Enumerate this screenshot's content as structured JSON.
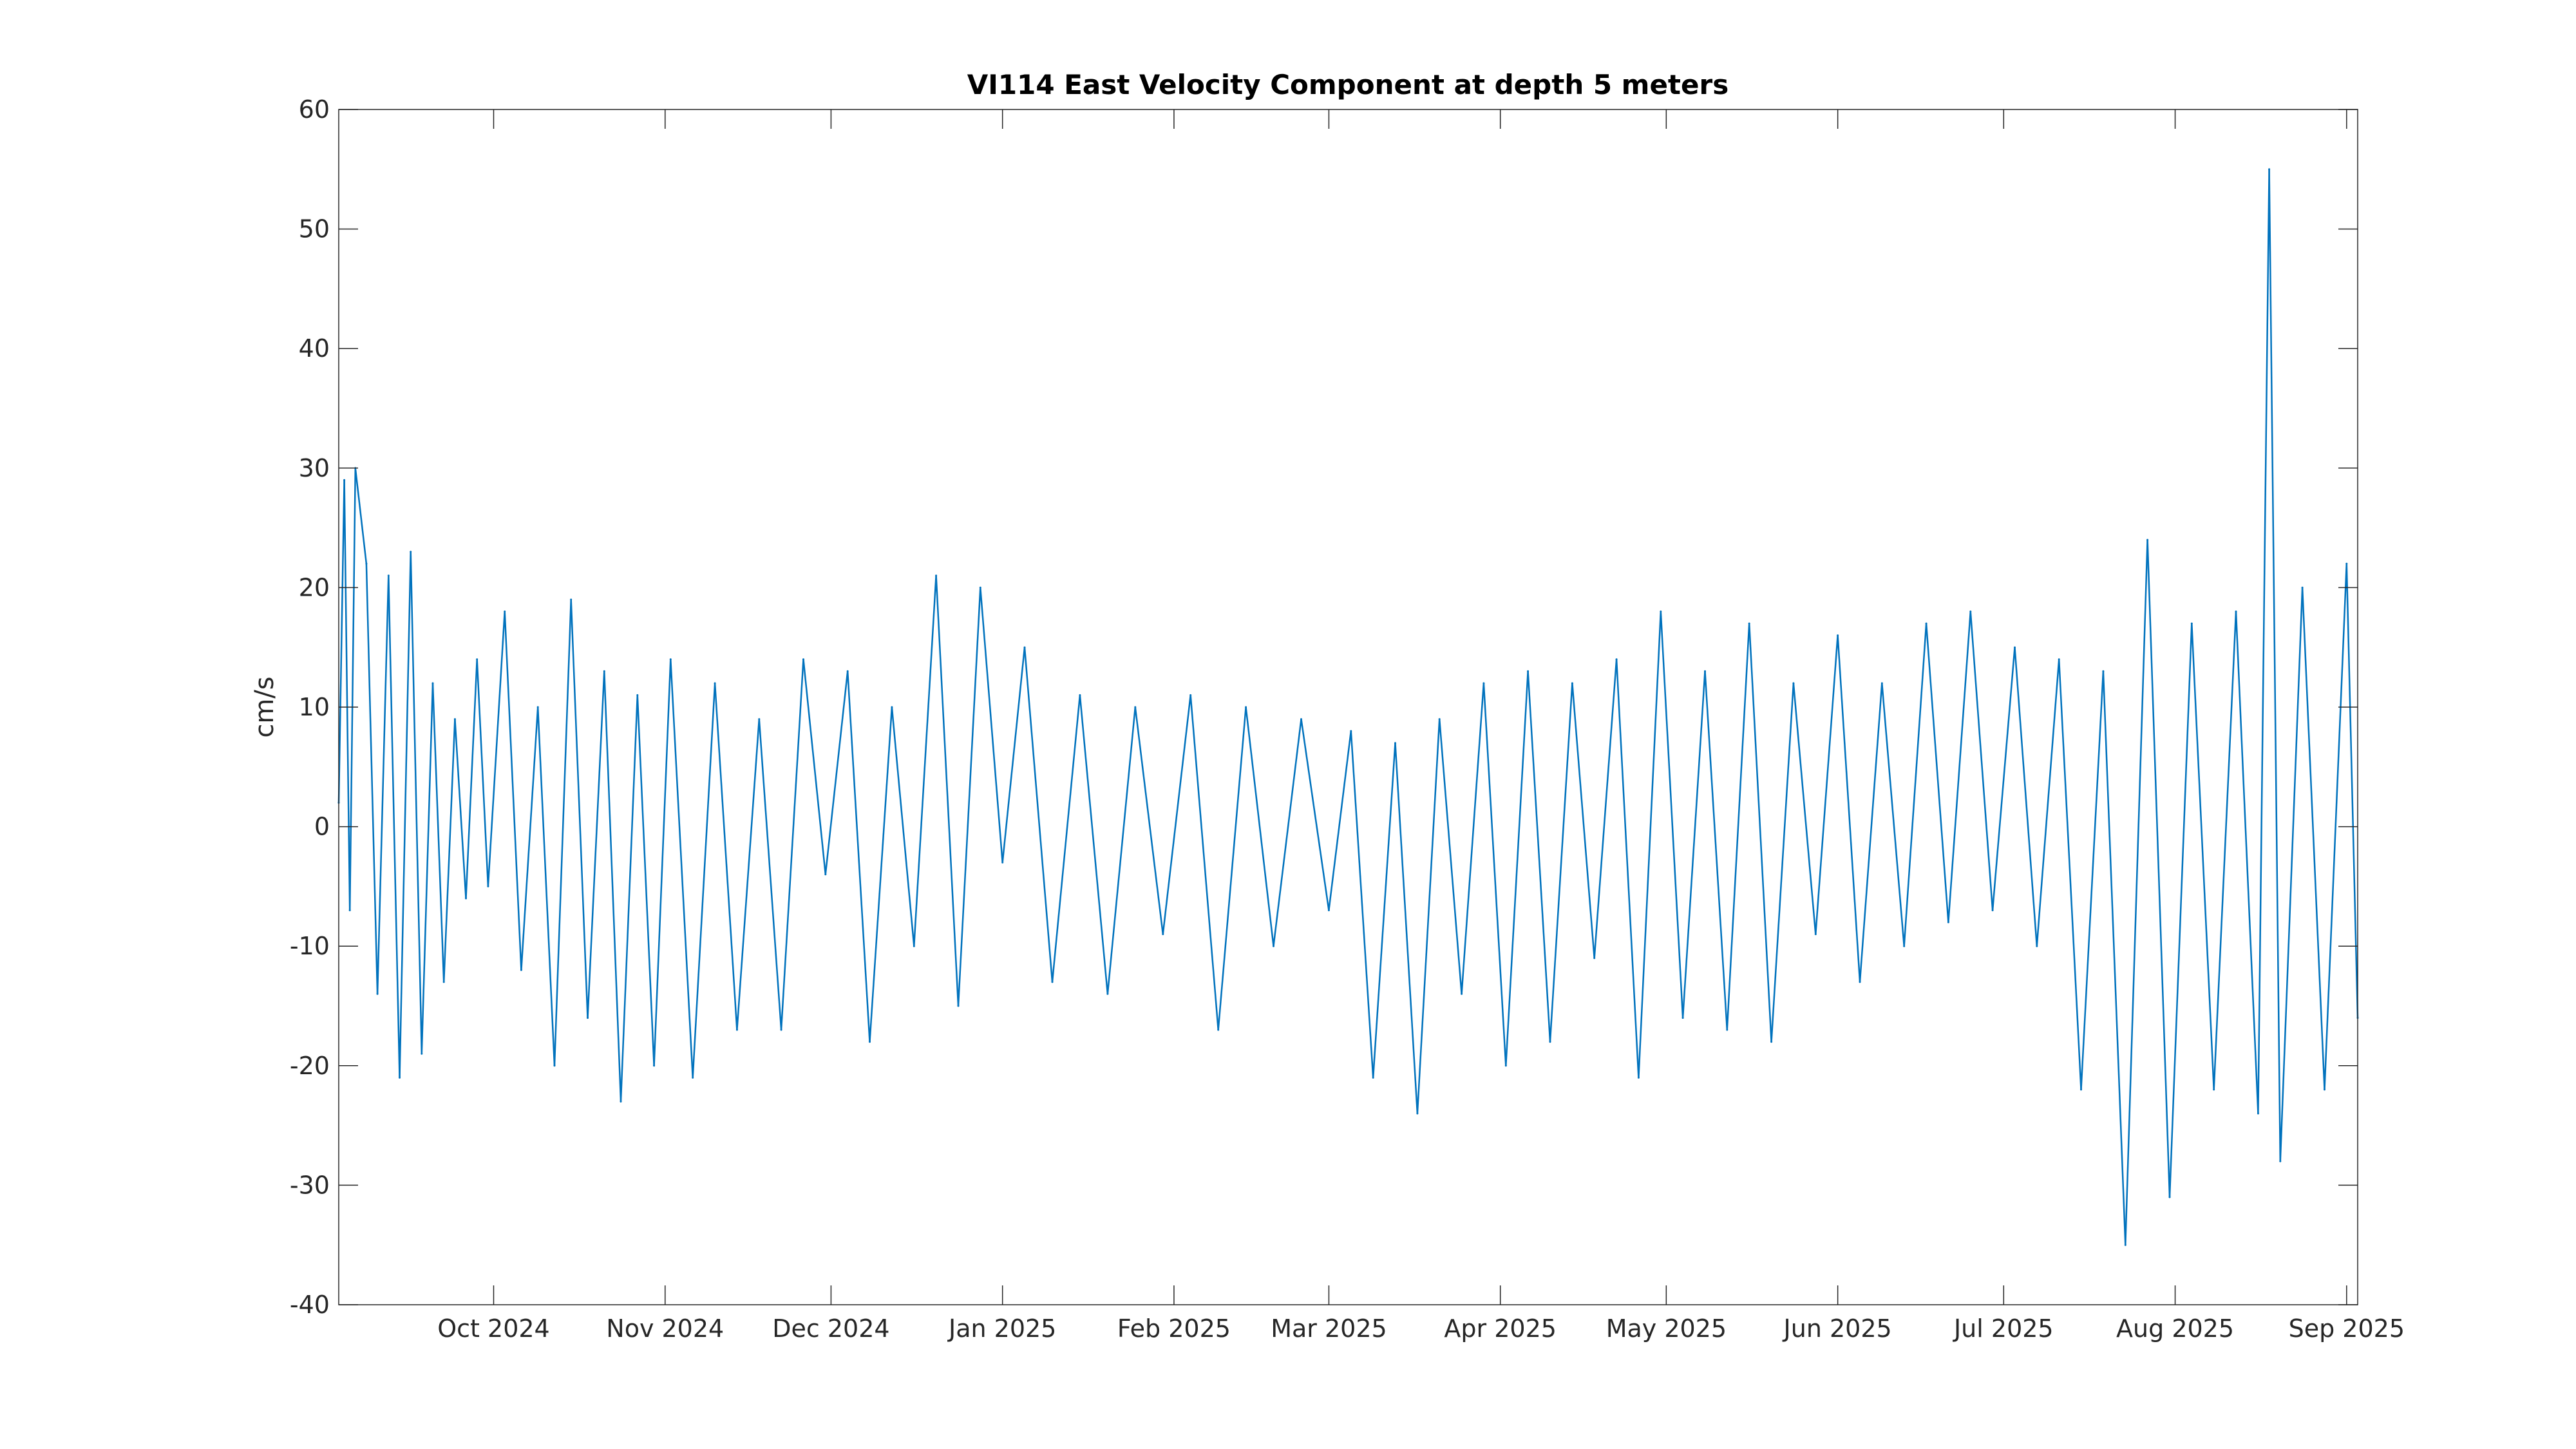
{
  "chart_data": {
    "type": "line",
    "title": "VI114 East Velocity Component at depth 5 meters",
    "xlabel": "",
    "ylabel": "cm/s",
    "ylim": [
      -40,
      60
    ],
    "yticks": [
      60,
      50,
      40,
      30,
      20,
      10,
      0,
      -10,
      -20,
      -30,
      -40
    ],
    "xlim": [
      "2024-09-03",
      "2025-09-03"
    ],
    "xticks": [
      {
        "date": "2024-10-01",
        "label": "Oct 2024"
      },
      {
        "date": "2024-11-01",
        "label": "Nov 2024"
      },
      {
        "date": "2024-12-01",
        "label": "Dec 2024"
      },
      {
        "date": "2025-01-01",
        "label": "Jan 2025"
      },
      {
        "date": "2025-02-01",
        "label": "Feb 2025"
      },
      {
        "date": "2025-03-01",
        "label": "Mar 2025"
      },
      {
        "date": "2025-04-01",
        "label": "Apr 2025"
      },
      {
        "date": "2025-05-01",
        "label": "May 2025"
      },
      {
        "date": "2025-06-01",
        "label": "Jun 2025"
      },
      {
        "date": "2025-07-01",
        "label": "Jul 2025"
      },
      {
        "date": "2025-08-01",
        "label": "Aug 2025"
      },
      {
        "date": "2025-09-01",
        "label": "Sep 2025"
      }
    ],
    "grid": false,
    "series_color": "#0072BD",
    "series": [
      {
        "x": [
          "2024-09-03",
          "2024-09-04",
          "2024-09-05",
          "2024-09-06",
          "2024-09-08",
          "2024-09-10",
          "2024-09-12",
          "2024-09-14",
          "2024-09-16",
          "2024-09-18",
          "2024-09-20",
          "2024-09-22",
          "2024-09-24",
          "2024-09-26",
          "2024-09-28",
          "2024-09-30",
          "2024-10-03",
          "2024-10-06",
          "2024-10-09",
          "2024-10-12",
          "2024-10-15",
          "2024-10-18",
          "2024-10-21",
          "2024-10-24",
          "2024-10-27",
          "2024-10-30",
          "2024-11-02",
          "2024-11-06",
          "2024-11-10",
          "2024-11-14",
          "2024-11-18",
          "2024-11-22",
          "2024-11-26",
          "2024-11-30",
          "2024-12-04",
          "2024-12-08",
          "2024-12-12",
          "2024-12-16",
          "2024-12-20",
          "2024-12-24",
          "2024-12-28",
          "2025-01-01",
          "2025-01-05",
          "2025-01-10",
          "2025-01-15",
          "2025-01-20",
          "2025-01-25",
          "2025-01-30",
          "2025-02-04",
          "2025-02-09",
          "2025-02-14",
          "2025-02-19",
          "2025-02-24",
          "2025-03-01",
          "2025-03-05",
          "2025-03-09",
          "2025-03-13",
          "2025-03-17",
          "2025-03-21",
          "2025-03-25",
          "2025-03-29",
          "2025-04-02",
          "2025-04-06",
          "2025-04-10",
          "2025-04-14",
          "2025-04-18",
          "2025-04-22",
          "2025-04-26",
          "2025-04-30",
          "2025-05-04",
          "2025-05-08",
          "2025-05-12",
          "2025-05-16",
          "2025-05-20",
          "2025-05-24",
          "2025-05-28",
          "2025-06-01",
          "2025-06-05",
          "2025-06-09",
          "2025-06-13",
          "2025-06-17",
          "2025-06-21",
          "2025-06-25",
          "2025-06-29",
          "2025-07-03",
          "2025-07-07",
          "2025-07-11",
          "2025-07-15",
          "2025-07-19",
          "2025-07-23",
          "2025-07-27",
          "2025-07-31",
          "2025-08-04",
          "2025-08-08",
          "2025-08-12",
          "2025-08-16",
          "2025-08-18",
          "2025-08-20",
          "2025-08-24",
          "2025-08-28",
          "2025-09-01",
          "2025-09-03"
        ],
        "y": [
          2,
          29,
          -7,
          30,
          22,
          -14,
          21,
          -21,
          23,
          -19,
          12,
          -13,
          9,
          -6,
          14,
          -5,
          18,
          -12,
          10,
          -20,
          19,
          -16,
          13,
          -23,
          11,
          -20,
          14,
          -21,
          12,
          -17,
          9,
          -17,
          14,
          -4,
          13,
          -18,
          10,
          -10,
          21,
          -15,
          20,
          -3,
          15,
          -13,
          11,
          -14,
          10,
          -9,
          11,
          -17,
          10,
          -10,
          9,
          -7,
          8,
          -21,
          7,
          -24,
          9,
          -14,
          12,
          -20,
          13,
          -18,
          12,
          -11,
          14,
          -21,
          18,
          -16,
          13,
          -17,
          17,
          -18,
          12,
          -9,
          16,
          -13,
          12,
          -10,
          17,
          -8,
          18,
          -7,
          15,
          -10,
          14,
          -22,
          13,
          -35,
          24,
          -31,
          17,
          -22,
          18,
          -24,
          55,
          -28,
          20,
          -22,
          22,
          -16
        ]
      }
    ]
  }
}
